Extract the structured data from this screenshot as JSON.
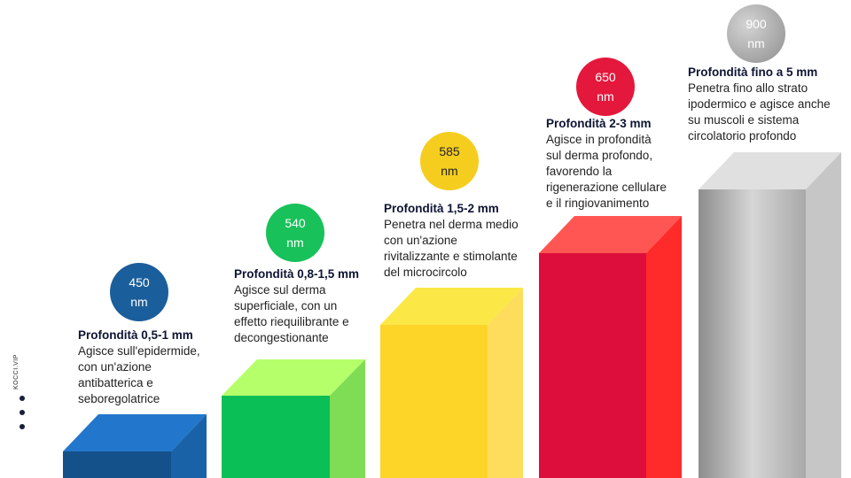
{
  "side_label": "KOCCI.VIP",
  "steps": [
    {
      "wavelength": "450",
      "unit": "nm",
      "heading": "Profondità 0,5-1 mm",
      "lines": [
        "Agisce sull'epidermide,",
        "con un'azione",
        "antibatterica e",
        "seboregolatrice"
      ],
      "colors": {
        "badge": "#1b5e9c",
        "front": "#14508a",
        "top": "#2277cc",
        "side": "#1a62a8"
      }
    },
    {
      "wavelength": "540",
      "unit": "nm",
      "heading": "Profondità 0,8-1,5 mm",
      "lines": [
        "Agisce sul derma",
        "superficiale, con un",
        "effetto riequilibrante e",
        "decongestionante"
      ],
      "colors": {
        "badge": "#18c15a",
        "front": "#0abf55",
        "top": "#b5ff6b",
        "side": "#7fdc55"
      }
    },
    {
      "wavelength": "585",
      "unit": "nm",
      "heading": "Profondità 1,5-2 mm",
      "lines": [
        "Penetra nel derma medio",
        "con un'azione",
        "rivitalizzante e stimolante",
        "del microcircolo"
      ],
      "colors": {
        "badge": "#f5cd1e",
        "front": "#fdd428",
        "top": "#fbe846",
        "side": "#fedd5c"
      }
    },
    {
      "wavelength": "650",
      "unit": "nm",
      "heading": "Profondità 2-3 mm",
      "lines": [
        "Agisce in profondità",
        "sul derma profondo,",
        "favorendo la",
        "rigenerazione cellulare",
        "e il ringiovanimento"
      ],
      "colors": {
        "badge": "#e4183c",
        "front": "#de0e3c",
        "top": "#ff5654",
        "side": "#ff2a2a"
      }
    },
    {
      "wavelength": "900",
      "unit": "nm",
      "heading": "Profondità fino a 5 mm",
      "lines": [
        "Penetra fino allo strato",
        "ipodermico e agisce anche",
        "su muscoli e sistema",
        "circolatorio profondo"
      ],
      "colors": {
        "badge": "#a6a6a6",
        "front": "#b4b4b4",
        "top": "#e0e0e0",
        "side": "#c6c6c6"
      }
    }
  ]
}
